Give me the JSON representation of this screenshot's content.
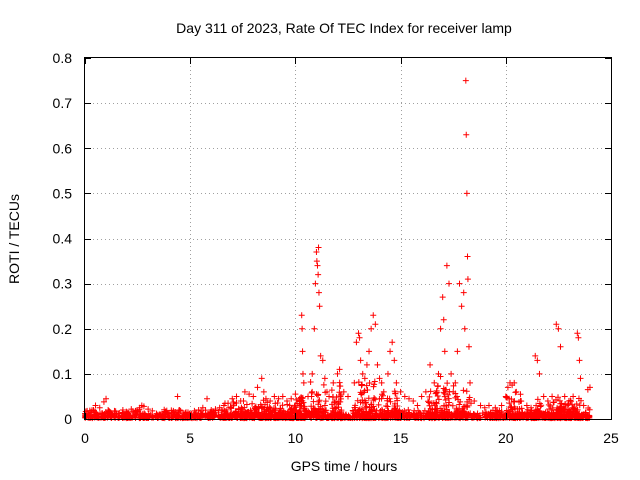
{
  "chart_data": {
    "type": "scatter",
    "title": "Day 311 of 2023, Rate Of TEC Index for receiver lamp",
    "xlabel": "GPS time / hours",
    "ylabel": "ROTI / TECUs",
    "xlim": [
      0,
      25
    ],
    "ylim": [
      0,
      0.8
    ],
    "xticks": [
      0,
      5,
      10,
      15,
      20,
      25
    ],
    "yticks": [
      0,
      0.1,
      0.2,
      0.3,
      0.4,
      0.5,
      0.6,
      0.7,
      0.8
    ],
    "xtick_labels": [
      "0",
      "5",
      "10",
      "15",
      "20",
      "25"
    ],
    "ytick_labels": [
      "0",
      "0.1",
      "0.2",
      "0.3",
      "0.4",
      "0.5",
      "0.6",
      "0.7",
      "0.8"
    ],
    "grid": true,
    "marker": "+",
    "color": "#ff0000",
    "series": [
      {
        "points": [
          [
            0.0,
            0.012
          ],
          [
            0.1,
            0.018
          ],
          [
            0.2,
            0.008
          ],
          [
            0.3,
            0.015
          ],
          [
            0.4,
            0.02
          ],
          [
            0.5,
            0.03
          ],
          [
            0.6,
            0.01
          ],
          [
            0.7,
            0.025
          ],
          [
            0.8,
            0.012
          ],
          [
            0.9,
            0.038
          ],
          [
            1.0,
            0.045
          ],
          [
            1.1,
            0.02
          ],
          [
            1.2,
            0.015
          ],
          [
            1.4,
            0.018
          ],
          [
            1.6,
            0.012
          ],
          [
            1.8,
            0.02
          ],
          [
            2.0,
            0.015
          ],
          [
            2.2,
            0.022
          ],
          [
            2.4,
            0.018
          ],
          [
            2.6,
            0.025
          ],
          [
            2.7,
            0.03
          ],
          [
            2.8,
            0.028
          ],
          [
            3.0,
            0.022
          ],
          [
            3.2,
            0.018
          ],
          [
            3.4,
            0.012
          ],
          [
            3.6,
            0.01
          ],
          [
            3.8,
            0.015
          ],
          [
            4.0,
            0.012
          ],
          [
            4.2,
            0.018
          ],
          [
            4.4,
            0.05
          ],
          [
            4.5,
            0.02
          ],
          [
            4.8,
            0.015
          ],
          [
            5.0,
            0.01
          ],
          [
            5.2,
            0.018
          ],
          [
            5.4,
            0.02
          ],
          [
            5.6,
            0.025
          ],
          [
            5.8,
            0.045
          ],
          [
            6.0,
            0.02
          ],
          [
            6.2,
            0.022
          ],
          [
            6.4,
            0.025
          ],
          [
            6.6,
            0.03
          ],
          [
            6.8,
            0.035
          ],
          [
            7.0,
            0.045
          ],
          [
            7.2,
            0.05
          ],
          [
            7.4,
            0.04
          ],
          [
            7.6,
            0.06
          ],
          [
            7.8,
            0.055
          ],
          [
            8.0,
            0.05
          ],
          [
            8.2,
            0.07
          ],
          [
            8.4,
            0.09
          ],
          [
            8.5,
            0.06
          ],
          [
            8.6,
            0.045
          ],
          [
            8.8,
            0.04
          ],
          [
            9.0,
            0.05
          ],
          [
            9.2,
            0.045
          ],
          [
            9.4,
            0.05
          ],
          [
            9.6,
            0.04
          ],
          [
            9.8,
            0.045
          ],
          [
            10.0,
            0.055
          ],
          [
            10.2,
            0.045
          ],
          [
            10.3,
            0.23
          ],
          [
            10.32,
            0.2
          ],
          [
            10.34,
            0.15
          ],
          [
            10.36,
            0.1
          ],
          [
            10.4,
            0.08
          ],
          [
            10.6,
            0.05
          ],
          [
            10.8,
            0.1
          ],
          [
            10.9,
            0.2
          ],
          [
            10.95,
            0.3
          ],
          [
            11.0,
            0.37
          ],
          [
            11.02,
            0.35
          ],
          [
            11.05,
            0.34
          ],
          [
            11.08,
            0.32
          ],
          [
            11.1,
            0.38
          ],
          [
            11.12,
            0.28
          ],
          [
            11.15,
            0.25
          ],
          [
            11.2,
            0.14
          ],
          [
            11.3,
            0.13
          ],
          [
            11.4,
            0.09
          ],
          [
            11.5,
            0.06
          ],
          [
            11.6,
            0.05
          ],
          [
            11.8,
            0.08
          ],
          [
            12.0,
            0.1
          ],
          [
            12.1,
            0.11
          ],
          [
            12.3,
            0.06
          ],
          [
            12.5,
            0.05
          ],
          [
            12.8,
            0.08
          ],
          [
            12.9,
            0.17
          ],
          [
            13.0,
            0.19
          ],
          [
            13.05,
            0.18
          ],
          [
            13.1,
            0.13
          ],
          [
            13.2,
            0.1
          ],
          [
            13.3,
            0.09
          ],
          [
            13.4,
            0.12
          ],
          [
            13.5,
            0.15
          ],
          [
            13.6,
            0.2
          ],
          [
            13.7,
            0.23
          ],
          [
            13.8,
            0.21
          ],
          [
            13.9,
            0.12
          ],
          [
            14.0,
            0.09
          ],
          [
            14.1,
            0.08
          ],
          [
            14.2,
            0.06
          ],
          [
            14.4,
            0.1
          ],
          [
            14.5,
            0.15
          ],
          [
            14.6,
            0.17
          ],
          [
            14.7,
            0.13
          ],
          [
            14.8,
            0.08
          ],
          [
            15.0,
            0.06
          ],
          [
            15.2,
            0.05
          ],
          [
            15.4,
            0.045
          ],
          [
            15.6,
            0.04
          ],
          [
            15.8,
            0.03
          ],
          [
            16.0,
            0.05
          ],
          [
            16.2,
            0.06
          ],
          [
            16.4,
            0.12
          ],
          [
            16.6,
            0.08
          ],
          [
            16.8,
            0.1
          ],
          [
            16.9,
            0.2
          ],
          [
            17.0,
            0.27
          ],
          [
            17.05,
            0.22
          ],
          [
            17.1,
            0.15
          ],
          [
            17.2,
            0.34
          ],
          [
            17.3,
            0.3
          ],
          [
            17.4,
            0.1
          ],
          [
            17.5,
            0.06
          ],
          [
            17.6,
            0.08
          ],
          [
            17.7,
            0.15
          ],
          [
            17.8,
            0.3
          ],
          [
            17.9,
            0.25
          ],
          [
            18.0,
            0.28
          ],
          [
            18.05,
            0.2
          ],
          [
            18.1,
            0.75
          ],
          [
            18.12,
            0.63
          ],
          [
            18.15,
            0.5
          ],
          [
            18.18,
            0.36
          ],
          [
            18.2,
            0.31
          ],
          [
            18.25,
            0.16
          ],
          [
            18.3,
            0.08
          ],
          [
            18.5,
            0.04
          ],
          [
            18.8,
            0.03
          ],
          [
            19.0,
            0.025
          ],
          [
            19.2,
            0.03
          ],
          [
            19.5,
            0.025
          ],
          [
            19.8,
            0.03
          ],
          [
            20.0,
            0.05
          ],
          [
            20.1,
            0.07
          ],
          [
            20.2,
            0.08
          ],
          [
            20.3,
            0.075
          ],
          [
            20.4,
            0.08
          ],
          [
            20.5,
            0.06
          ],
          [
            20.7,
            0.04
          ],
          [
            21.0,
            0.03
          ],
          [
            21.2,
            0.025
          ],
          [
            21.4,
            0.14
          ],
          [
            21.5,
            0.13
          ],
          [
            21.6,
            0.1
          ],
          [
            21.8,
            0.05
          ],
          [
            22.0,
            0.04
          ],
          [
            22.2,
            0.05
          ],
          [
            22.4,
            0.21
          ],
          [
            22.5,
            0.2
          ],
          [
            22.6,
            0.16
          ],
          [
            22.8,
            0.05
          ],
          [
            23.0,
            0.04
          ],
          [
            23.2,
            0.05
          ],
          [
            23.4,
            0.19
          ],
          [
            23.45,
            0.18
          ],
          [
            23.5,
            0.13
          ],
          [
            23.55,
            0.09
          ],
          [
            23.7,
            0.03
          ],
          [
            23.9,
            0.065
          ],
          [
            24.0,
            0.07
          ]
        ]
      }
    ],
    "dense_clusters": [
      {
        "x_start": 0.0,
        "x_end": 24.0,
        "y_max": 0.02
      },
      {
        "x_start": 6.6,
        "x_end": 10.2,
        "y_max": 0.045
      },
      {
        "x_start": 10.2,
        "x_end": 10.5,
        "y_max": 0.06
      },
      {
        "x_start": 10.7,
        "x_end": 11.5,
        "y_max": 0.09
      },
      {
        "x_start": 11.7,
        "x_end": 12.2,
        "y_max": 0.09
      },
      {
        "x_start": 12.8,
        "x_end": 14.2,
        "y_max": 0.1
      },
      {
        "x_start": 14.3,
        "x_end": 14.9,
        "y_max": 0.08
      },
      {
        "x_start": 16.3,
        "x_end": 17.6,
        "y_max": 0.1
      },
      {
        "x_start": 17.6,
        "x_end": 18.4,
        "y_max": 0.08
      },
      {
        "x_start": 20.0,
        "x_end": 20.8,
        "y_max": 0.07
      },
      {
        "x_start": 21.3,
        "x_end": 21.7,
        "y_max": 0.05
      },
      {
        "x_start": 22.0,
        "x_end": 24.0,
        "y_max": 0.05
      }
    ]
  }
}
